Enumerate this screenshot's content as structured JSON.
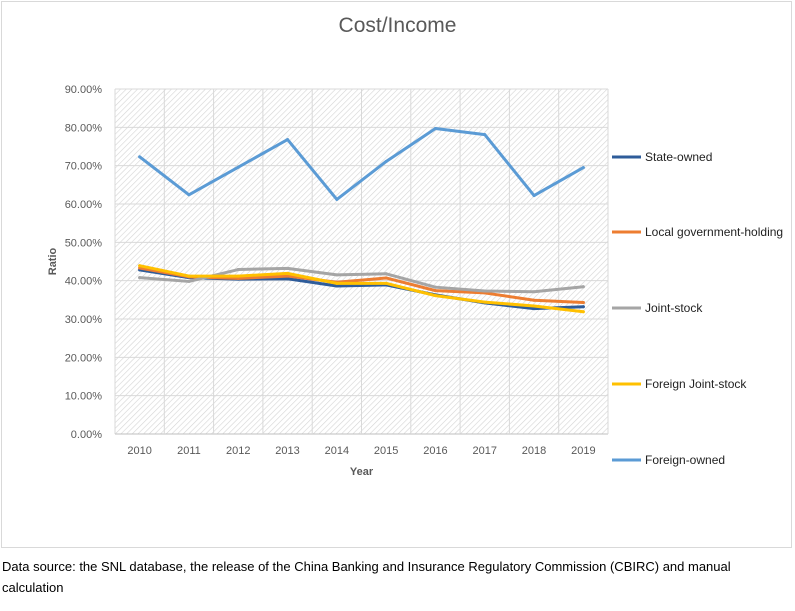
{
  "title": "Cost/Income",
  "source_note": "Data source: the SNL database, the release of the China Banking and Insurance Regulatory Commission (CBIRC) and manual calculation",
  "chart_data": {
    "type": "line",
    "title": "Cost/Income",
    "xlabel": "Year",
    "ylabel": "Ratio",
    "x": [
      "2010",
      "2011",
      "2012",
      "2013",
      "2014",
      "2015",
      "2016",
      "2017",
      "2018",
      "2019"
    ],
    "ylim": [
      0,
      90
    ],
    "yticks": [
      0,
      10,
      20,
      30,
      40,
      50,
      60,
      70,
      80,
      90
    ],
    "ytick_labels": [
      "0.00%",
      "10.00%",
      "20.00%",
      "30.00%",
      "40.00%",
      "50.00%",
      "60.00%",
      "70.00%",
      "80.00%",
      "90.00%"
    ],
    "grid": true,
    "legend_position": "right",
    "series": [
      {
        "name": "State-owned",
        "color": "#2e5c9a",
        "values": [
          42.8,
          40.8,
          40.4,
          40.5,
          38.6,
          38.9,
          36.3,
          34.2,
          32.7,
          33.2
        ]
      },
      {
        "name": "Local government-holding",
        "color": "#ed7d31",
        "values": [
          43.3,
          41.0,
          40.6,
          41.2,
          39.6,
          40.7,
          37.4,
          36.8,
          34.9,
          34.3
        ]
      },
      {
        "name": "Joint-stock",
        "color": "#a5a5a5",
        "values": [
          40.8,
          39.8,
          42.9,
          43.2,
          41.5,
          41.8,
          38.3,
          37.3,
          37.1,
          38.4
        ]
      },
      {
        "name": "Foreign Joint-stock",
        "color": "#ffc000",
        "values": [
          43.9,
          41.2,
          41.2,
          41.9,
          39.3,
          39.3,
          36.1,
          34.4,
          33.4,
          31.9
        ]
      },
      {
        "name": "Foreign-owned",
        "color": "#5b9bd5",
        "values": [
          72.3,
          62.4,
          69.6,
          76.8,
          61.2,
          71.1,
          79.7,
          78.1,
          62.2,
          69.5
        ]
      }
    ]
  }
}
